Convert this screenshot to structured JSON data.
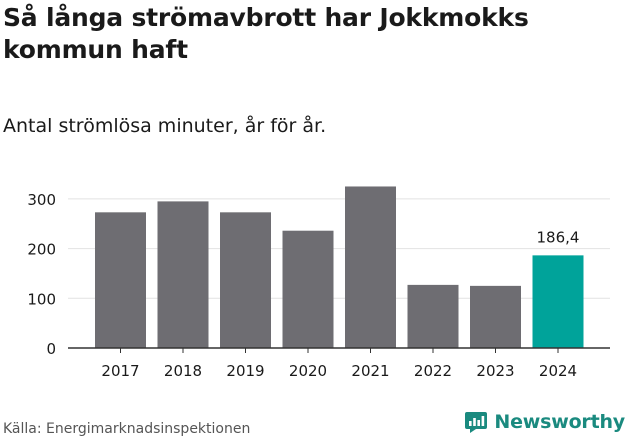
{
  "header": {
    "title": "Så långa strömavbrott har Jokkmokks kommun haft",
    "subtitle": "Antal strömlösa minuter, år för år."
  },
  "footer": {
    "source": "Källa: Energimarknadsinspektionen",
    "brand": "Newsworthy"
  },
  "colors": {
    "bar": "#6e6d72",
    "highlight": "#00a39a",
    "grid": "#e2e2e2",
    "axis": "#333333",
    "brand": "#1a8a7f"
  },
  "chart_data": {
    "type": "bar",
    "title": "Så långa strömavbrott har Jokkmokks kommun haft",
    "subtitle": "Antal strömlösa minuter, år för år.",
    "xlabel": "",
    "ylabel": "",
    "categories": [
      "2017",
      "2018",
      "2019",
      "2020",
      "2021",
      "2022",
      "2023",
      "2024"
    ],
    "values": [
      273,
      295,
      273,
      236,
      325,
      127,
      125,
      186.4
    ],
    "highlight_index": 7,
    "data_labels": [
      {
        "category": "2024",
        "text": "186,4"
      }
    ],
    "ylim": [
      0,
      330
    ],
    "yticks": [
      0,
      100,
      200,
      300
    ],
    "grid": true,
    "legend": "none"
  }
}
